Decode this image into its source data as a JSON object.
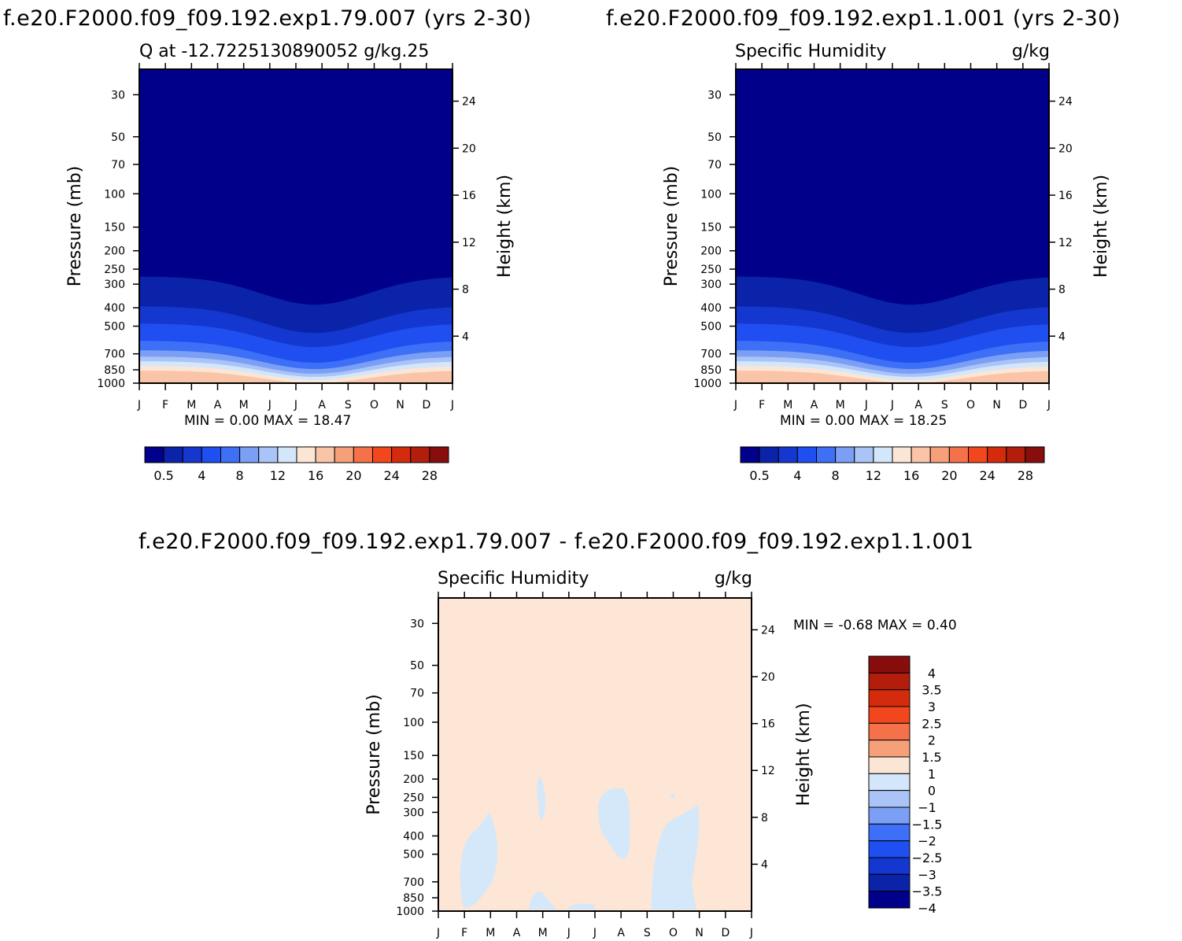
{
  "top_left": {
    "run_title": "f.e20.F2000.f09_f09.192.exp1.79.007 (yrs 2-30)",
    "left_label": "Q at -12.7225130890052 g/kg.25",
    "right_label": "",
    "min_max": "MIN =    0.00  MAX =   18.47"
  },
  "top_right": {
    "run_title": "f.e20.F2000.f09_f09.192.exp1.1.001 (yrs 2-30)",
    "left_label": "Specific Humidity",
    "right_label": "g/kg",
    "min_max": "MIN =    0.00  MAX =   18.25"
  },
  "diff": {
    "title": "f.e20.F2000.f09_f09.192.exp1.79.007 - f.e20.F2000.f09_f09.192.exp1.1.001",
    "left_label": "Specific Humidity",
    "right_label": "g/kg",
    "min_max": "MIN =   -0.68  MAX =    0.40"
  },
  "chart_data": [
    {
      "type": "heatmap",
      "title": "Q at -12.7225130890052 g/kg.25",
      "xlabel": "",
      "ylabel": "Pressure (mb)",
      "y2label": "Height (km)",
      "x_ticks": [
        "J",
        "F",
        "M",
        "A",
        "M",
        "J",
        "J",
        "A",
        "S",
        "O",
        "N",
        "D",
        "J"
      ],
      "y_ticks": [
        "30",
        "50",
        "70",
        "100",
        "150",
        "200",
        "250",
        "300",
        "400",
        "500",
        "700",
        "850",
        "1000"
      ],
      "y2_ticks": [
        "24",
        "20",
        "16",
        "12",
        "8",
        "4"
      ],
      "contour_levels": [
        0.5,
        2,
        4,
        6,
        8,
        10,
        12,
        14,
        16,
        18,
        20,
        22,
        24,
        26,
        28
      ],
      "colorbar_labels": [
        "0.5",
        "4",
        "8",
        "12",
        "16",
        "20",
        "24",
        "28"
      ],
      "min": 0.0,
      "max": 18.47
    },
    {
      "type": "heatmap",
      "title": "Specific Humidity",
      "units": "g/kg",
      "ylabel": "Pressure (mb)",
      "y2label": "Height (km)",
      "x_ticks": [
        "J",
        "F",
        "M",
        "A",
        "M",
        "J",
        "J",
        "A",
        "S",
        "O",
        "N",
        "D",
        "J"
      ],
      "y_ticks": [
        "30",
        "50",
        "70",
        "100",
        "150",
        "200",
        "250",
        "300",
        "400",
        "500",
        "700",
        "850",
        "1000"
      ],
      "y2_ticks": [
        "24",
        "20",
        "16",
        "12",
        "8",
        "4"
      ],
      "contour_levels": [
        0.5,
        2,
        4,
        6,
        8,
        10,
        12,
        14,
        16,
        18,
        20,
        22,
        24,
        26,
        28
      ],
      "colorbar_labels": [
        "0.5",
        "4",
        "8",
        "12",
        "16",
        "20",
        "24",
        "28"
      ],
      "min": 0.0,
      "max": 18.25
    },
    {
      "type": "heatmap",
      "title": "Specific Humidity",
      "units": "g/kg",
      "ylabel": "Pressure (mb)",
      "y2label": "Height (km)",
      "x_ticks": [
        "J",
        "F",
        "M",
        "A",
        "M",
        "J",
        "J",
        "A",
        "S",
        "O",
        "N",
        "D",
        "J"
      ],
      "y_ticks": [
        "30",
        "50",
        "70",
        "100",
        "150",
        "200",
        "250",
        "300",
        "400",
        "500",
        "700",
        "850",
        "1000"
      ],
      "y2_ticks": [
        "24",
        "20",
        "16",
        "12",
        "8",
        "4"
      ],
      "contour_levels": [
        -4,
        -3.5,
        -3,
        -2.5,
        -2,
        -1.5,
        -1,
        0,
        1,
        1.5,
        2,
        2.5,
        3,
        3.5,
        4
      ],
      "colorbar_labels": [
        "4",
        "3.5",
        "3",
        "2.5",
        "2",
        "1.5",
        "1",
        "0",
        "-1",
        "-1.5",
        "-2",
        "-2.5",
        "-3",
        "-3.5",
        "-4"
      ],
      "min": -0.68,
      "max": 0.4
    }
  ],
  "colors": {
    "abs_scale": [
      "#00008b",
      "#0a23a8",
      "#1337cf",
      "#1f4ff0",
      "#3d6ff7",
      "#7a9ff5",
      "#abc4f8",
      "#d3e6fa",
      "#fbe6d6",
      "#f9c4a8",
      "#f6a07a",
      "#f5714a",
      "#f2461c",
      "#d42b0c",
      "#b21d0c",
      "#880d0d"
    ],
    "diff_scale": [
      "#880d0d",
      "#b21d0c",
      "#d42b0c",
      "#f2461c",
      "#f5714a",
      "#f6a07a",
      "#fbe6d6",
      "#d3e6fa",
      "#abc4f8",
      "#7a9ff5",
      "#3d6ff7",
      "#1f4ff0",
      "#1337cf",
      "#0a23a8",
      "#00008b"
    ],
    "diff_background": "#fde6d6",
    "diff_negative": "#d4e8fa"
  }
}
